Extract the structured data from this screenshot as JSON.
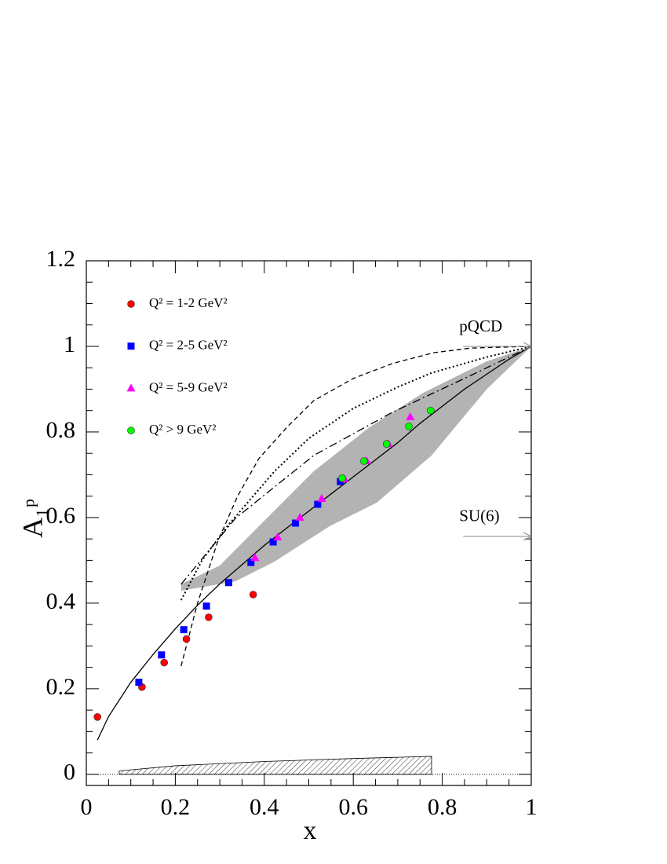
{
  "chart_data": {
    "type": "scatter",
    "x_label": "x",
    "y_label": "A₁ᵖ",
    "xlim": [
      0,
      1
    ],
    "ylim": [
      -0.026,
      1.2
    ],
    "xticks": [
      0,
      0.2,
      0.4,
      0.6,
      0.8,
      1
    ],
    "yticks": [
      0,
      0.2,
      0.4,
      0.6,
      0.8,
      1,
      1.2
    ],
    "series": [
      {
        "name": "Q² = 1-2 GeV²",
        "marker": "circle",
        "color": "#ff0000",
        "x": [
          0.025,
          0.125,
          0.175,
          0.225,
          0.275,
          0.375
        ],
        "values": [
          0.134,
          0.204,
          0.261,
          0.316,
          0.367,
          0.42
        ]
      },
      {
        "name": "Q² = 2-5 GeV²",
        "marker": "square",
        "color": "#0000ff",
        "x": [
          0.118,
          0.169,
          0.219,
          0.27,
          0.32,
          0.37,
          0.42,
          0.47,
          0.52,
          0.571
        ],
        "values": [
          0.215,
          0.279,
          0.338,
          0.393,
          0.448,
          0.495,
          0.543,
          0.587,
          0.631,
          0.684
        ]
      },
      {
        "name": "Q² = 5-9 GeV²",
        "marker": "triangle",
        "color": "#ff00ff",
        "x": [
          0.379,
          0.43,
          0.48,
          0.529,
          0.58,
          0.63,
          0.679,
          0.728
        ],
        "values": [
          0.506,
          0.554,
          0.6,
          0.644,
          0.69,
          0.732,
          0.772,
          0.835
        ]
      },
      {
        "name": "Q² > 9 GeV²",
        "marker": "circle",
        "color": "#00ff00",
        "x": [
          0.575,
          0.624,
          0.675,
          0.725,
          0.774
        ],
        "values": [
          0.692,
          0.732,
          0.772,
          0.813,
          0.85
        ]
      }
    ],
    "curves": [
      {
        "dash": "none",
        "x": [
          0.025,
          0.05,
          0.1,
          0.15,
          0.2,
          0.25,
          0.3,
          0.35,
          0.4,
          0.45,
          0.5,
          0.55,
          0.6,
          0.65,
          0.7,
          0.75,
          0.8,
          0.85,
          0.9,
          0.95,
          1.0
        ],
        "values": [
          0.08,
          0.135,
          0.215,
          0.28,
          0.34,
          0.395,
          0.445,
          0.49,
          0.535,
          0.575,
          0.615,
          0.655,
          0.695,
          0.735,
          0.775,
          0.82,
          0.86,
          0.9,
          0.935,
          0.97,
          1.0
        ]
      },
      {
        "dash": "6,4",
        "x": [
          0.213,
          0.25,
          0.295,
          0.34,
          0.388,
          0.45,
          0.511,
          0.6,
          0.688,
          0.78,
          0.864,
          1
        ],
        "values": [
          0.253,
          0.4,
          0.543,
          0.65,
          0.738,
          0.81,
          0.873,
          0.925,
          0.96,
          0.985,
          0.996,
          1
        ]
      },
      {
        "dash": "2,3",
        "x": [
          0.213,
          0.26,
          0.317,
          0.423,
          0.5,
          0.6,
          0.7,
          0.776,
          0.9,
          1
        ],
        "values": [
          0.407,
          0.5,
          0.58,
          0.708,
          0.785,
          0.855,
          0.905,
          0.938,
          0.975,
          1
        ]
      },
      {
        "dash": "10,4,2,4",
        "x": [
          0.213,
          0.335,
          0.511,
          0.688,
          0.864,
          1
        ],
        "values": [
          0.444,
          0.598,
          0.745,
          0.846,
          0.932,
          1
        ]
      }
    ],
    "band": {
      "color": "#b3b3b3",
      "x_upper": [
        0.213,
        0.3,
        0.388,
        0.511,
        0.635,
        0.758,
        0.9,
        1
      ],
      "upper": [
        0.444,
        0.488,
        0.58,
        0.708,
        0.81,
        0.892,
        0.965,
        1
      ],
      "x_lower": [
        0.213,
        0.335,
        0.423,
        0.547,
        0.653,
        0.776,
        0.9,
        1
      ],
      "lower": [
        0.429,
        0.451,
        0.497,
        0.58,
        0.635,
        0.745,
        0.9,
        1
      ]
    },
    "systematic": {
      "x": [
        0.074,
        0.2,
        0.4,
        0.6,
        0.776
      ],
      "values": [
        0.008,
        0.02,
        0.03,
        0.037,
        0.042
      ]
    },
    "annotations": [
      {
        "text": "pQCD",
        "x": 0.9,
        "value": 1
      },
      {
        "text": "SU(6)",
        "x": 0.9,
        "value": 0.556
      }
    ]
  }
}
